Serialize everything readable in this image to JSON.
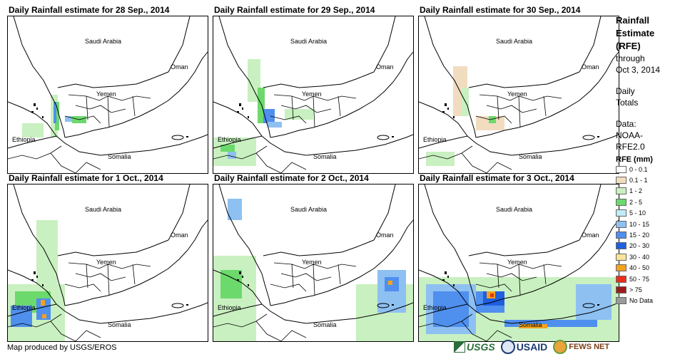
{
  "panels": [
    {
      "title": "Daily Rainfall estimate for 28 Sep., 2014"
    },
    {
      "title": "Daily Rainfall estimate for 29 Sep., 2014"
    },
    {
      "title": "Daily Rainfall estimate for 30 Sep., 2014"
    },
    {
      "title": "Daily Rainfall estimate for 1 Oct., 2014"
    },
    {
      "title": "Daily Rainfall estimate for 2 Oct., 2014"
    },
    {
      "title": "Daily Rainfall estimate for 3 Oct., 2014"
    }
  ],
  "map_labels": {
    "saudi": "Saudi Arabia",
    "oman": "Oman",
    "yemen": "Yemen",
    "ethiopia": "Ethiopia",
    "somalia": "Somalia"
  },
  "sidebar": {
    "title_lines": [
      "Rainfall",
      "Estimate",
      "(RFE)"
    ],
    "through": "through",
    "date": "Oct 3, 2014",
    "daily": "Daily",
    "totals": "Totals",
    "data_label": "Data:",
    "data_source_lines": [
      "NOAA-",
      "RFE2.0"
    ],
    "legend_title": "RFE (mm)",
    "legend": [
      {
        "label": "0 - 0.1",
        "color": "#ffffff"
      },
      {
        "label": "0.1 - 1",
        "color": "#f2dcc0"
      },
      {
        "label": "1 - 2",
        "color": "#c9f0c0"
      },
      {
        "label": "2 - 5",
        "color": "#6cd96c"
      },
      {
        "label": "5 - 10",
        "color": "#c2ecf7"
      },
      {
        "label": "10 - 15",
        "color": "#8ec0f2"
      },
      {
        "label": "15 - 20",
        "color": "#4f8fee"
      },
      {
        "label": "20 - 30",
        "color": "#1f5fe0"
      },
      {
        "label": "30 - 40",
        "color": "#fbe49a"
      },
      {
        "label": "40 - 50",
        "color": "#f5a21b"
      },
      {
        "label": "50 - 75",
        "color": "#e8301c"
      },
      {
        "label": "> 75",
        "color": "#9c1c1c"
      },
      {
        "label": "No Data",
        "color": "#9a9a9a"
      }
    ]
  },
  "footer": {
    "credit": "Map produced by USGS/EROS"
  },
  "logos": {
    "usgs": "USGS",
    "usaid": "USAID",
    "fews": "FEWS NET"
  }
}
